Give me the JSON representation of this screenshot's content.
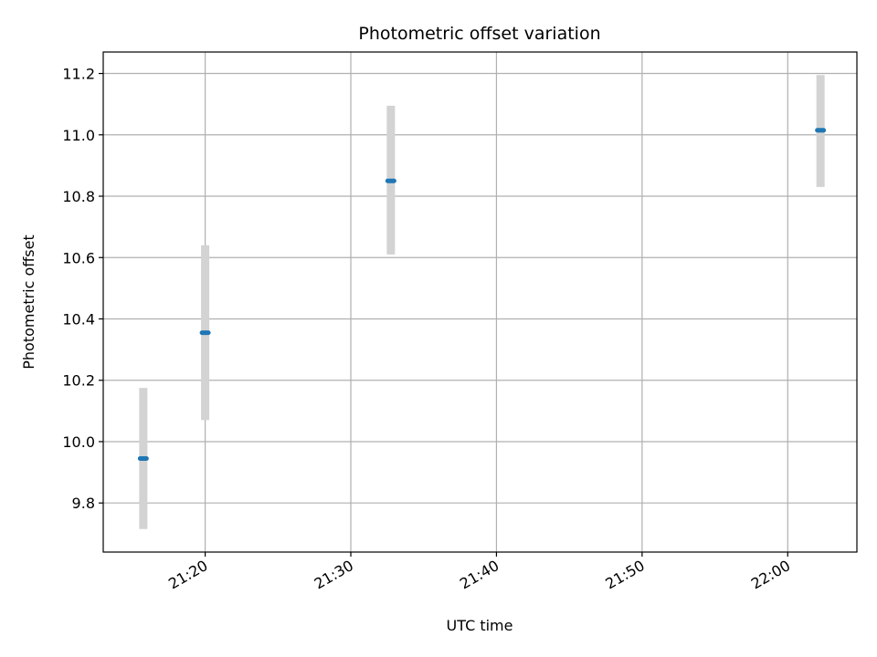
{
  "chart_data": {
    "type": "scatter",
    "title": "Photometric offset variation",
    "xlabel": "UTC time",
    "ylabel": "Photometric offset",
    "x_unit": "time of day (HH:MM)",
    "xlim": [
      "21:13:00",
      "22:04:45"
    ],
    "ylim": [
      9.64,
      11.27
    ],
    "x_ticks": [
      "21:20",
      "21:30",
      "21:40",
      "21:50",
      "22:00"
    ],
    "y_ticks": [
      9.8,
      10.0,
      10.2,
      10.4,
      10.6,
      10.8,
      11.0,
      11.2
    ],
    "grid": true,
    "legend": "none",
    "series": [
      {
        "points": [
          {
            "x": "21:15:45",
            "y": 9.945,
            "err_low": 9.715,
            "err_high": 10.175
          },
          {
            "x": "21:20:00",
            "y": 10.355,
            "err_low": 10.07,
            "err_high": 10.64
          },
          {
            "x": "21:32:45",
            "y": 10.85,
            "err_low": 10.61,
            "err_high": 11.095
          },
          {
            "x": "22:02:15",
            "y": 11.015,
            "err_low": 10.83,
            "err_high": 11.195
          }
        ],
        "color": "#1f77b4",
        "errorbar_color": "#d3d3d3"
      }
    ]
  }
}
